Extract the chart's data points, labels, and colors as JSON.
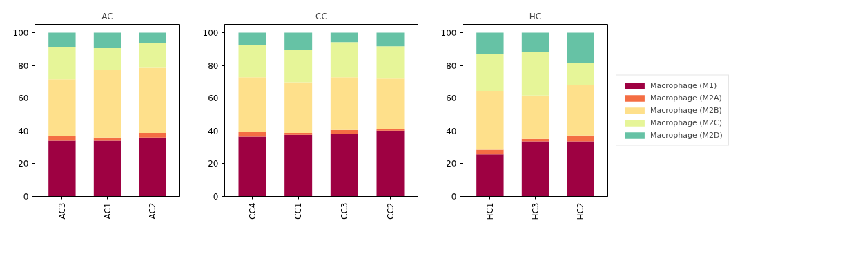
{
  "chart_data": [
    {
      "type": "bar",
      "title": "AC",
      "categories": [
        "AC3",
        "AC1",
        "AC2"
      ],
      "stacked": true,
      "ylim": [
        0,
        105
      ],
      "yticks": [
        0,
        20,
        40,
        60,
        80,
        100
      ],
      "grid": false,
      "legend": false,
      "series": [
        {
          "color": "#9e0142",
          "values": [
            34.0,
            34.0,
            36.0
          ]
        },
        {
          "color": "#f46d43",
          "values": [
            2.9,
            2.0,
            2.9
          ]
        },
        {
          "color": "#fee08b",
          "values": [
            34.6,
            41.3,
            39.6
          ]
        },
        {
          "color": "#e6f598",
          "values": [
            19.4,
            13.2,
            15.3
          ]
        },
        {
          "color": "#66c2a5",
          "values": [
            9.1,
            9.5,
            6.2
          ]
        }
      ]
    },
    {
      "type": "bar",
      "title": "CC",
      "categories": [
        "CC4",
        "CC1",
        "CC3",
        "CC2"
      ],
      "stacked": true,
      "ylim": [
        0,
        105
      ],
      "yticks": [
        0,
        20,
        40,
        60,
        80,
        100
      ],
      "grid": false,
      "legend": false,
      "series": [
        {
          "color": "#9e0142",
          "values": [
            36.5,
            37.7,
            38.1,
            40.2
          ]
        },
        {
          "color": "#f46d43",
          "values": [
            2.8,
            1.2,
            2.5,
            0.8
          ]
        },
        {
          "color": "#fee08b",
          "values": [
            33.5,
            30.8,
            32.2,
            30.9
          ]
        },
        {
          "color": "#e6f598",
          "values": [
            19.8,
            19.6,
            21.4,
            19.8
          ]
        },
        {
          "color": "#66c2a5",
          "values": [
            7.4,
            10.7,
            5.8,
            8.3
          ]
        }
      ]
    },
    {
      "type": "bar",
      "title": "HC",
      "categories": [
        "HC1",
        "HC3",
        "HC2"
      ],
      "stacked": true,
      "ylim": [
        0,
        105
      ],
      "yticks": [
        0,
        20,
        40,
        60,
        80,
        100
      ],
      "grid": false,
      "legend": "right",
      "series": [
        {
          "name": "Macrophage (M1)",
          "color": "#9e0142",
          "values": [
            25.7,
            33.6,
            33.6
          ]
        },
        {
          "name": "Macrophage (M2A)",
          "color": "#f46d43",
          "values": [
            2.9,
            1.6,
            3.7
          ]
        },
        {
          "name": "Macrophage (M2B)",
          "color": "#fee08b",
          "values": [
            35.9,
            26.4,
            30.5
          ]
        },
        {
          "name": "Macrophage (M2C)",
          "color": "#e6f598",
          "values": [
            22.7,
            26.8,
            13.6
          ]
        },
        {
          "name": "Macrophage (M2D)",
          "color": "#66c2a5",
          "values": [
            12.8,
            11.6,
            18.6
          ]
        }
      ]
    }
  ]
}
